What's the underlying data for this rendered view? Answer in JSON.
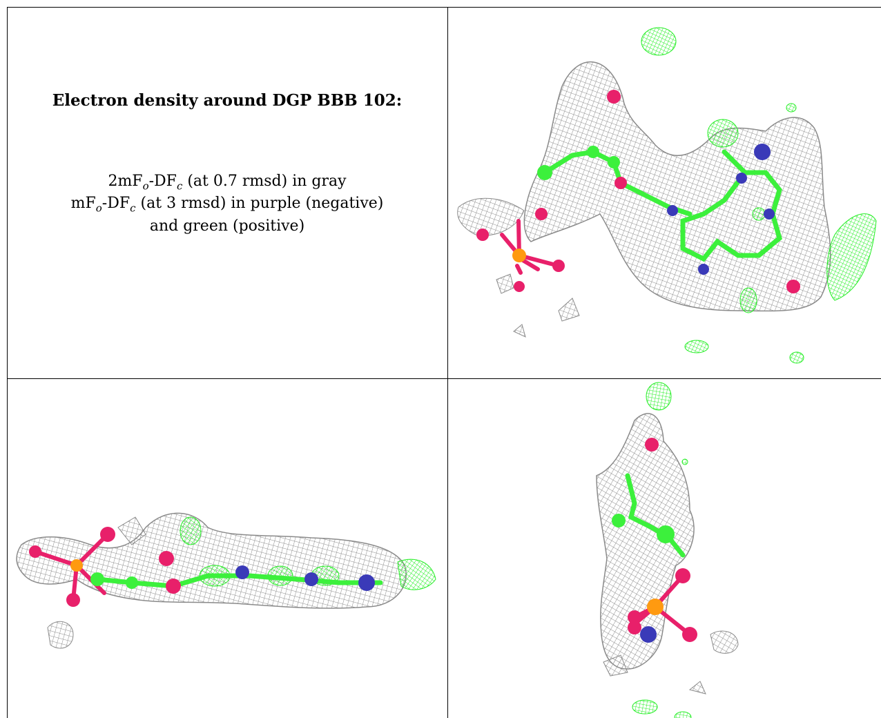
{
  "caption": {
    "title": "Electron density around DGP BBB 102:",
    "line1": {
      "prefix": "2mF",
      "s1": "o",
      "mid": "-DF",
      "s2": "c",
      "suffix": " (at 0.7 rmsd) in gray"
    },
    "line2": {
      "prefix": "mF",
      "s1": "o",
      "mid": "-DF",
      "s2": "c",
      "suffix": " (at 3 rmsd) in purple (negative)"
    },
    "line3": "and green (positive)"
  },
  "colors": {
    "mesh_2fofc": "#8a8a8a",
    "mesh_positive": "#22ee22",
    "mesh_negative": "#9a1fd0",
    "carbon": "#3cf03c",
    "nitrogen": "#3a3ab8",
    "oxygen": "#e8206a",
    "phosphorus": "#ff9a10"
  },
  "panels": [
    {
      "view": "front"
    },
    {
      "view": "side"
    },
    {
      "view": "top"
    }
  ]
}
